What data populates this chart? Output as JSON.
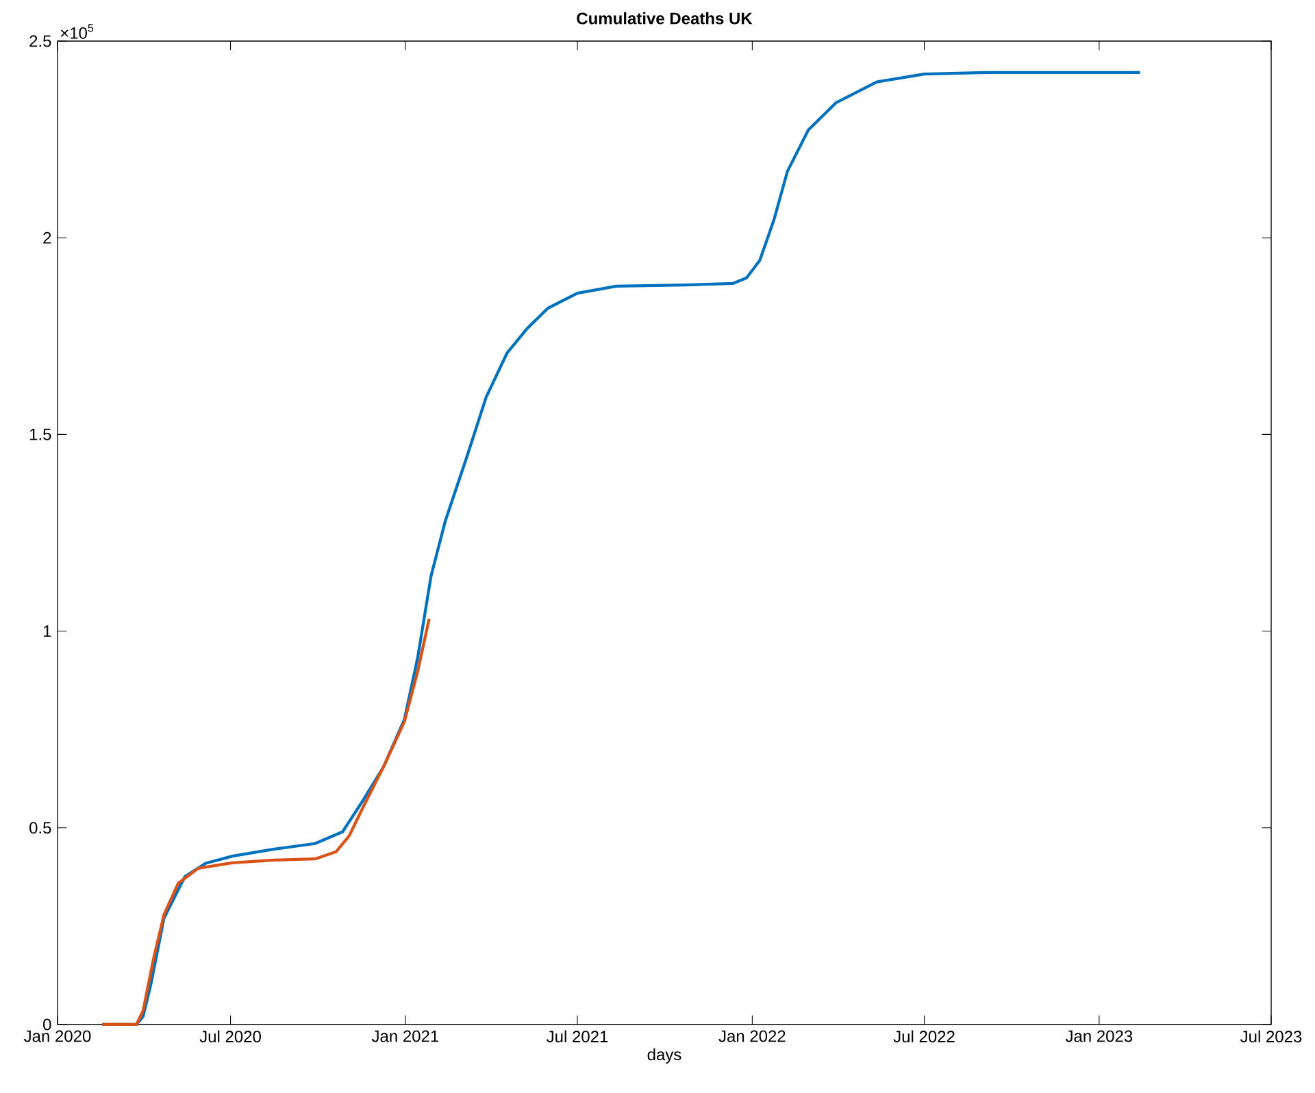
{
  "chart_data": {
    "type": "line",
    "title": "Cumulative Deaths UK",
    "xlabel": "days",
    "annotations": [
      "×10$^{5}$"
    ],
    "xlim": [
      "2020-01-01",
      "2023-07-01"
    ],
    "xticks": [
      {
        "value": "2020-01-01",
        "label": "Jan 2020"
      },
      {
        "value": "2020-07-01",
        "label": "Jul 2020"
      },
      {
        "value": "2021-01-01",
        "label": "Jan 2021"
      },
      {
        "value": "2021-07-01",
        "label": "Jul 2021"
      },
      {
        "value": "2022-01-01",
        "label": "Jan 2022"
      },
      {
        "value": "2022-07-01",
        "label": "Jul 2022"
      },
      {
        "value": "2023-01-01",
        "label": "Jan 2023"
      },
      {
        "value": "2023-07-01",
        "label": "Jul 2023"
      }
    ],
    "ylim": [
      0,
      2.5
    ],
    "yticks": [
      0,
      0.5,
      1,
      1.5,
      2,
      2.5
    ],
    "grid": false,
    "legend": false,
    "marker": "none",
    "line_style": "solid",
    "series": [
      {
        "color": "#0072bd",
        "x": [
          "2020-02-17",
          "2020-03-24",
          "2020-03-31",
          "2020-04-08",
          "2020-04-22",
          "2020-05-14",
          "2020-06-05",
          "2020-07-03",
          "2020-08-16",
          "2020-09-28",
          "2020-10-27",
          "2020-11-17",
          "2020-12-09",
          "2020-12-31",
          "2021-01-14",
          "2021-01-28",
          "2021-02-12",
          "2021-03-06",
          "2021-03-27",
          "2021-04-18",
          "2021-05-09",
          "2021-05-31",
          "2021-07-01",
          "2021-08-11",
          "2021-10-22",
          "2021-12-12",
          "2021-12-26",
          "2022-01-09",
          "2022-01-24",
          "2022-02-07",
          "2022-03-01",
          "2022-03-30",
          "2022-05-12",
          "2022-07-01",
          "2022-09-04",
          "2023-02-13"
        ],
        "values": [
          0,
          0,
          0.02,
          0.1,
          0.27,
          0.376,
          0.41,
          0.428,
          0.446,
          0.46,
          0.49,
          0.568,
          0.655,
          0.776,
          0.933,
          1.14,
          1.28,
          1.438,
          1.595,
          1.707,
          1.769,
          1.821,
          1.859,
          1.877,
          1.88,
          1.884,
          1.898,
          1.943,
          2.047,
          2.169,
          2.274,
          2.343,
          2.396,
          2.416,
          2.42,
          2.42
        ]
      },
      {
        "color": "#d95319",
        "x": [
          "2020-02-17",
          "2020-03-24",
          "2020-03-31",
          "2020-04-11",
          "2020-04-22",
          "2020-05-07",
          "2020-05-28",
          "2020-07-03",
          "2020-08-16",
          "2020-09-28",
          "2020-10-20",
          "2020-11-03",
          "2020-11-17",
          "2020-12-09",
          "2020-12-31",
          "2021-01-14",
          "2021-01-26"
        ],
        "values": [
          0,
          0,
          0.035,
          0.167,
          0.279,
          0.359,
          0.397,
          0.411,
          0.418,
          0.421,
          0.439,
          0.48,
          0.55,
          0.655,
          0.77,
          0.898,
          1.031
        ]
      }
    ]
  }
}
